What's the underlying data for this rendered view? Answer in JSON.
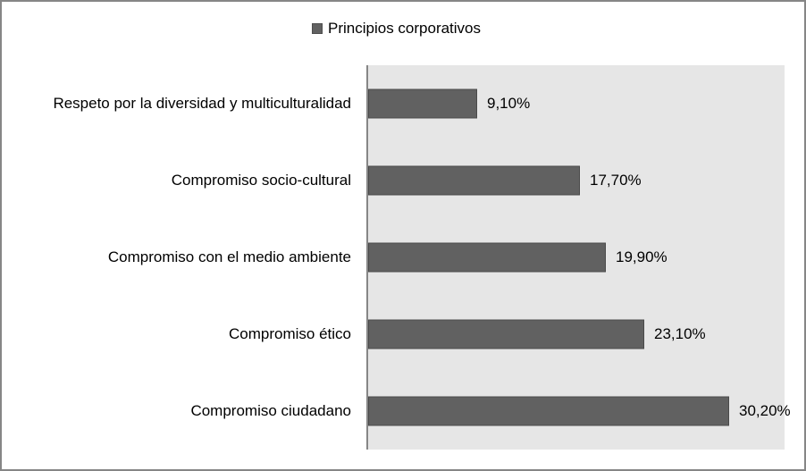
{
  "chart_data": {
    "type": "bar",
    "orientation": "horizontal",
    "title": "",
    "legend": {
      "position": "top",
      "entries": [
        "Principios corporativos"
      ]
    },
    "categories": [
      "Respeto por la diversidad y multiculturalidad",
      "Compromiso socio-cultural",
      "Compromiso con el medio ambiente",
      "Compromiso ético",
      "Compromiso ciudadano"
    ],
    "series": [
      {
        "name": "Principios corporativos",
        "values": [
          9.1,
          17.7,
          19.9,
          23.1,
          30.2
        ],
        "labels": [
          "9,10%",
          "17,70%",
          "19,90%",
          "23,10%",
          "30,20%"
        ],
        "color": "#616161"
      }
    ],
    "xlabel": "",
    "ylabel": "",
    "xlim": [
      0,
      35
    ],
    "grid": false,
    "plot_background": "#e6e6e6"
  },
  "legend_label": "Principios corporativos"
}
